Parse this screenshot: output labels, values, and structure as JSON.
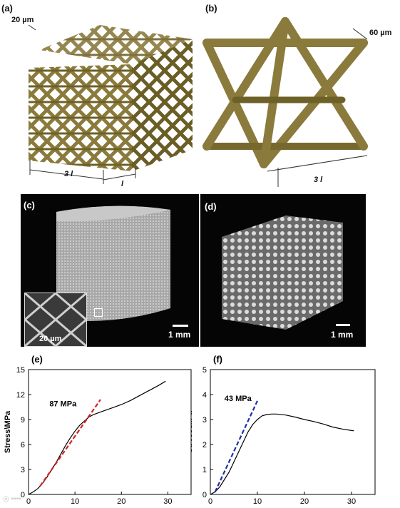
{
  "panel_labels": {
    "a": "(a)",
    "b": "(b)",
    "c": "(c)",
    "d": "(d)",
    "e": "(e)",
    "f": "(f)"
  },
  "panel_a": {
    "strut_dim": "20 µm",
    "length_total": "3 l",
    "length_cell": "l"
  },
  "panel_b": {
    "strut_dim": "60 µm",
    "length_total": "3 l"
  },
  "panel_c": {
    "scale": "1 mm",
    "inset_scale": "20 µm"
  },
  "panel_d": {
    "scale": "1 mm"
  },
  "colors": {
    "lattice": "#8a7a3c",
    "lattice_dark": "#5e5222",
    "curve": "#000000",
    "fit_e": "#d62020",
    "fit_f": "#1f2fa8"
  },
  "chart_data": [
    {
      "type": "line",
      "ylabel": "Stress\\MPa",
      "xlim": [
        0,
        35
      ],
      "ylim": [
        0,
        15
      ],
      "xticks": [
        0,
        10,
        20,
        30
      ],
      "yticks": [
        0,
        3,
        6,
        9,
        12,
        15
      ],
      "annotation": "87 MPa",
      "series": [
        {
          "values": [
            [
              0,
              0
            ],
            [
              1,
              0.3
            ],
            [
              2,
              0.7
            ],
            [
              3,
              1.3
            ],
            [
              4,
              2.1
            ],
            [
              5,
              3.0
            ],
            [
              6,
              3.9
            ],
            [
              7,
              4.9
            ],
            [
              8,
              5.9
            ],
            [
              9,
              6.8
            ],
            [
              10,
              7.6
            ],
            [
              11,
              8.3
            ],
            [
              12,
              8.8
            ],
            [
              13,
              9.3
            ],
            [
              14,
              9.6
            ],
            [
              15,
              9.8
            ],
            [
              16,
              10.0
            ],
            [
              18,
              10.4
            ],
            [
              20,
              10.8
            ],
            [
              22,
              11.3
            ],
            [
              24,
              11.9
            ],
            [
              26,
              12.5
            ],
            [
              28,
              13.1
            ],
            [
              29.5,
              13.6
            ]
          ]
        },
        {
          "values": [
            [
              2.5,
              1.0
            ],
            [
              15.5,
              11.4
            ]
          ]
        }
      ]
    },
    {
      "type": "line",
      "ylabel": "Stress\\MPa",
      "xlim": [
        0,
        35
      ],
      "ylim": [
        0,
        5
      ],
      "xticks": [
        0,
        10,
        20,
        30
      ],
      "yticks": [
        0,
        1,
        2,
        3,
        4,
        5
      ],
      "annotation": "43 MPa",
      "series": [
        {
          "values": [
            [
              0,
              0
            ],
            [
              1,
              0.1
            ],
            [
              2,
              0.3
            ],
            [
              3,
              0.6
            ],
            [
              4,
              0.9
            ],
            [
              5,
              1.3
            ],
            [
              6,
              1.7
            ],
            [
              7,
              2.1
            ],
            [
              8,
              2.5
            ],
            [
              9,
              2.8
            ],
            [
              10,
              3.0
            ],
            [
              11,
              3.15
            ],
            [
              12,
              3.2
            ],
            [
              13,
              3.22
            ],
            [
              14,
              3.22
            ],
            [
              16,
              3.18
            ],
            [
              18,
              3.1
            ],
            [
              20,
              3.0
            ],
            [
              22,
              2.92
            ],
            [
              24,
              2.82
            ],
            [
              26,
              2.7
            ],
            [
              28,
              2.62
            ],
            [
              30,
              2.56
            ],
            [
              30.5,
              2.55
            ]
          ]
        },
        {
          "values": [
            [
              1,
              0.1
            ],
            [
              10,
              3.75
            ]
          ]
        }
      ]
    }
  ]
}
